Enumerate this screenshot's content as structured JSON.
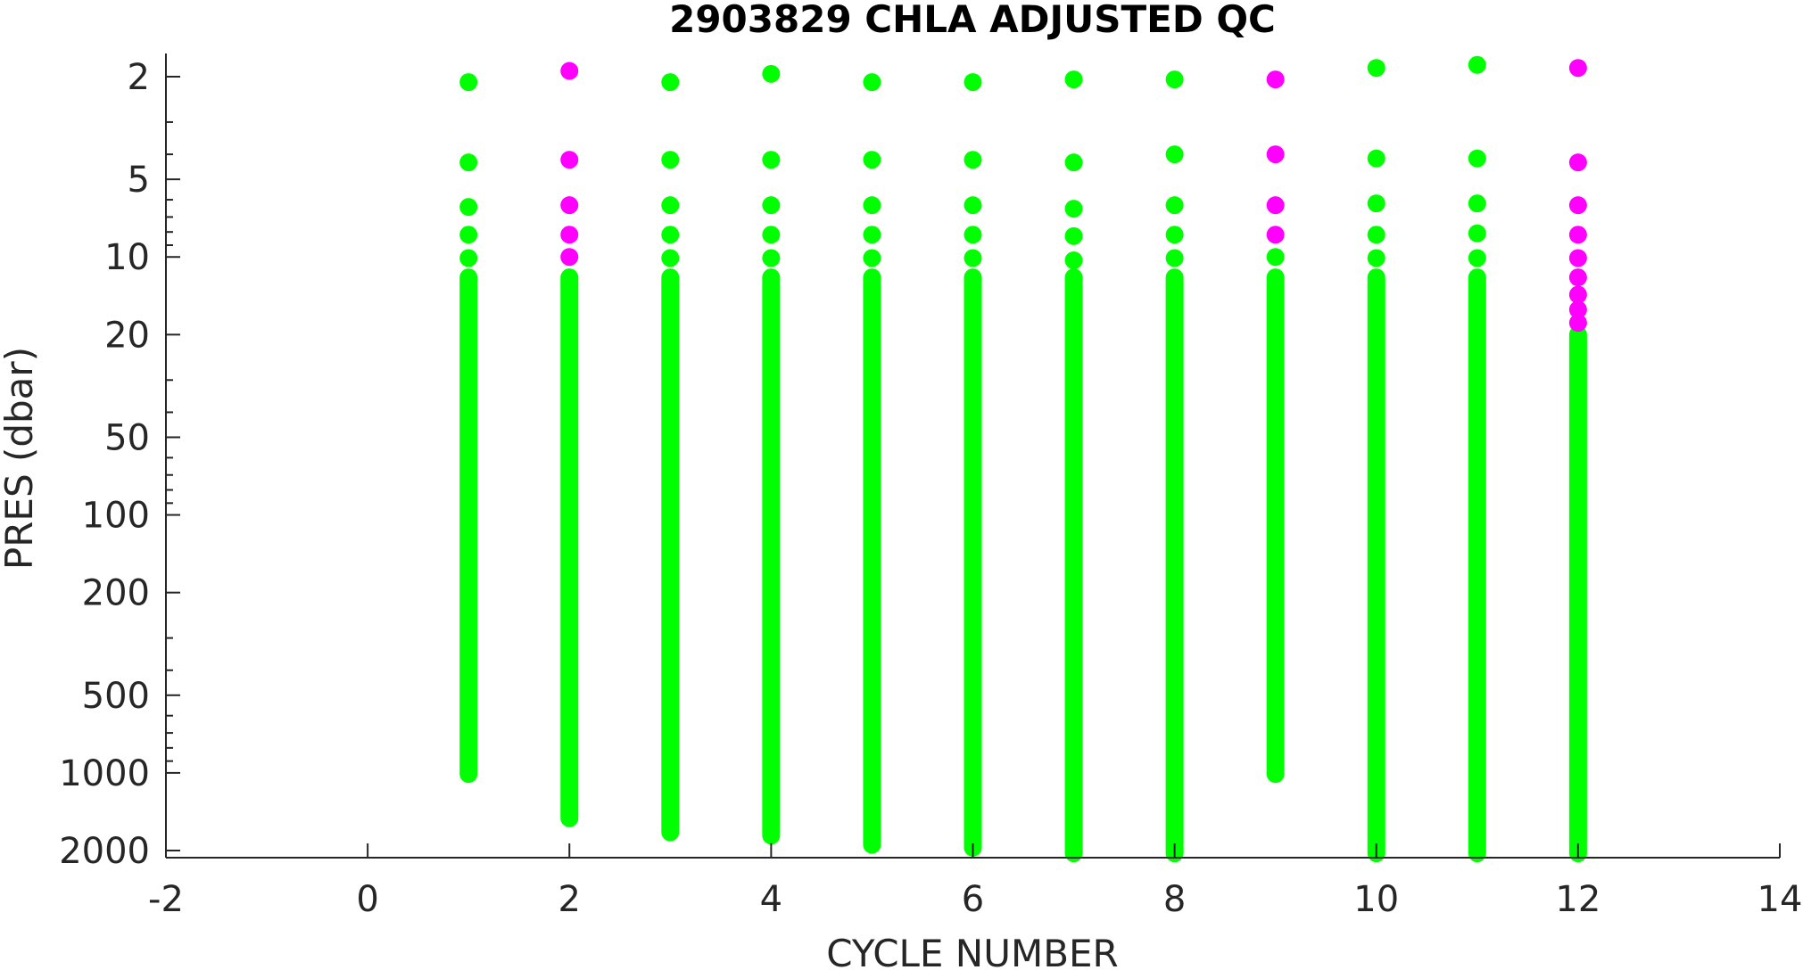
{
  "chart_data": {
    "type": "scatter",
    "title": "2903829  CHLA ADJUSTED QC",
    "xlabel": "CYCLE NUMBER",
    "ylabel": "PRES (dbar)",
    "xlim": [
      -2,
      14
    ],
    "ylim": [
      1.7,
      2150
    ],
    "y_scale": "log",
    "y_reversed": true,
    "grid": false,
    "x_ticks": [
      -2,
      0,
      2,
      4,
      6,
      8,
      10,
      12,
      14
    ],
    "x_tick_labels": [
      "-2",
      "0",
      "2",
      "4",
      "6",
      "8",
      "10",
      "12",
      "14"
    ],
    "y_ticks": [
      2,
      5,
      10,
      20,
      50,
      100,
      200,
      500,
      1000,
      2000
    ],
    "y_tick_labels": [
      "2",
      "5",
      "10",
      "20",
      "50",
      "100",
      "200",
      "500",
      "1000",
      "2000"
    ],
    "colors": {
      "qc_good": "#00ff00",
      "qc_flag": "#ff00ff"
    },
    "series": [
      {
        "color": "#00ff00",
        "profiles": [
          {
            "cycle": 1,
            "top": [
              2.1,
              4.3,
              6.4,
              8.2,
              10.1
            ],
            "column": [
              12,
              1010
            ]
          },
          {
            "cycle": 2,
            "top": [],
            "column": [
              12,
              1500
            ]
          },
          {
            "cycle": 3,
            "top": [
              2.1,
              4.2,
              6.3,
              8.2,
              10.1
            ],
            "column": [
              12,
              1700
            ]
          },
          {
            "cycle": 4,
            "top": [
              1.95,
              4.2,
              6.3,
              8.2,
              10.1
            ],
            "column": [
              12,
              1750
            ]
          },
          {
            "cycle": 5,
            "top": [
              2.1,
              4.2,
              6.3,
              8.2,
              10.1
            ],
            "column": [
              12,
              1900
            ]
          },
          {
            "cycle": 6,
            "top": [
              2.1,
              4.2,
              6.3,
              8.2,
              10.1
            ],
            "column": [
              12,
              1950
            ]
          },
          {
            "cycle": 7,
            "top": [
              2.05,
              4.3,
              6.5,
              8.3,
              10.3
            ],
            "column": [
              12,
              2050
            ]
          },
          {
            "cycle": 8,
            "top": [
              2.05,
              4.0,
              6.3,
              8.2,
              10.1
            ],
            "column": [
              12,
              2050
            ]
          },
          {
            "cycle": 9,
            "top": [
              10.0
            ],
            "column": [
              12,
              1010
            ]
          },
          {
            "cycle": 10,
            "top": [
              1.85,
              4.15,
              6.2,
              8.2,
              10.1
            ],
            "column": [
              12,
              2050
            ]
          },
          {
            "cycle": 11,
            "top": [
              1.8,
              4.15,
              6.2,
              8.1,
              10.1
            ],
            "column": [
              12,
              2050
            ]
          },
          {
            "cycle": 12,
            "top": [],
            "column": [
              20,
              2050
            ]
          }
        ]
      },
      {
        "color": "#ff00ff",
        "points": [
          {
            "cycle": 2,
            "pres": 1.9
          },
          {
            "cycle": 2,
            "pres": 4.2
          },
          {
            "cycle": 2,
            "pres": 6.3
          },
          {
            "cycle": 2,
            "pres": 8.2
          },
          {
            "cycle": 2,
            "pres": 10.0
          },
          {
            "cycle": 9,
            "pres": 2.05
          },
          {
            "cycle": 9,
            "pres": 4.0
          },
          {
            "cycle": 9,
            "pres": 6.3
          },
          {
            "cycle": 9,
            "pres": 8.2
          },
          {
            "cycle": 12,
            "pres": 1.85
          },
          {
            "cycle": 12,
            "pres": 4.3
          },
          {
            "cycle": 12,
            "pres": 6.3
          },
          {
            "cycle": 12,
            "pres": 8.2
          },
          {
            "cycle": 12,
            "pres": 10.1
          },
          {
            "cycle": 12,
            "pres": 12.0
          },
          {
            "cycle": 12,
            "pres": 14.0
          },
          {
            "cycle": 12,
            "pres": 16.0
          },
          {
            "cycle": 12,
            "pres": 18.0
          }
        ]
      }
    ]
  }
}
